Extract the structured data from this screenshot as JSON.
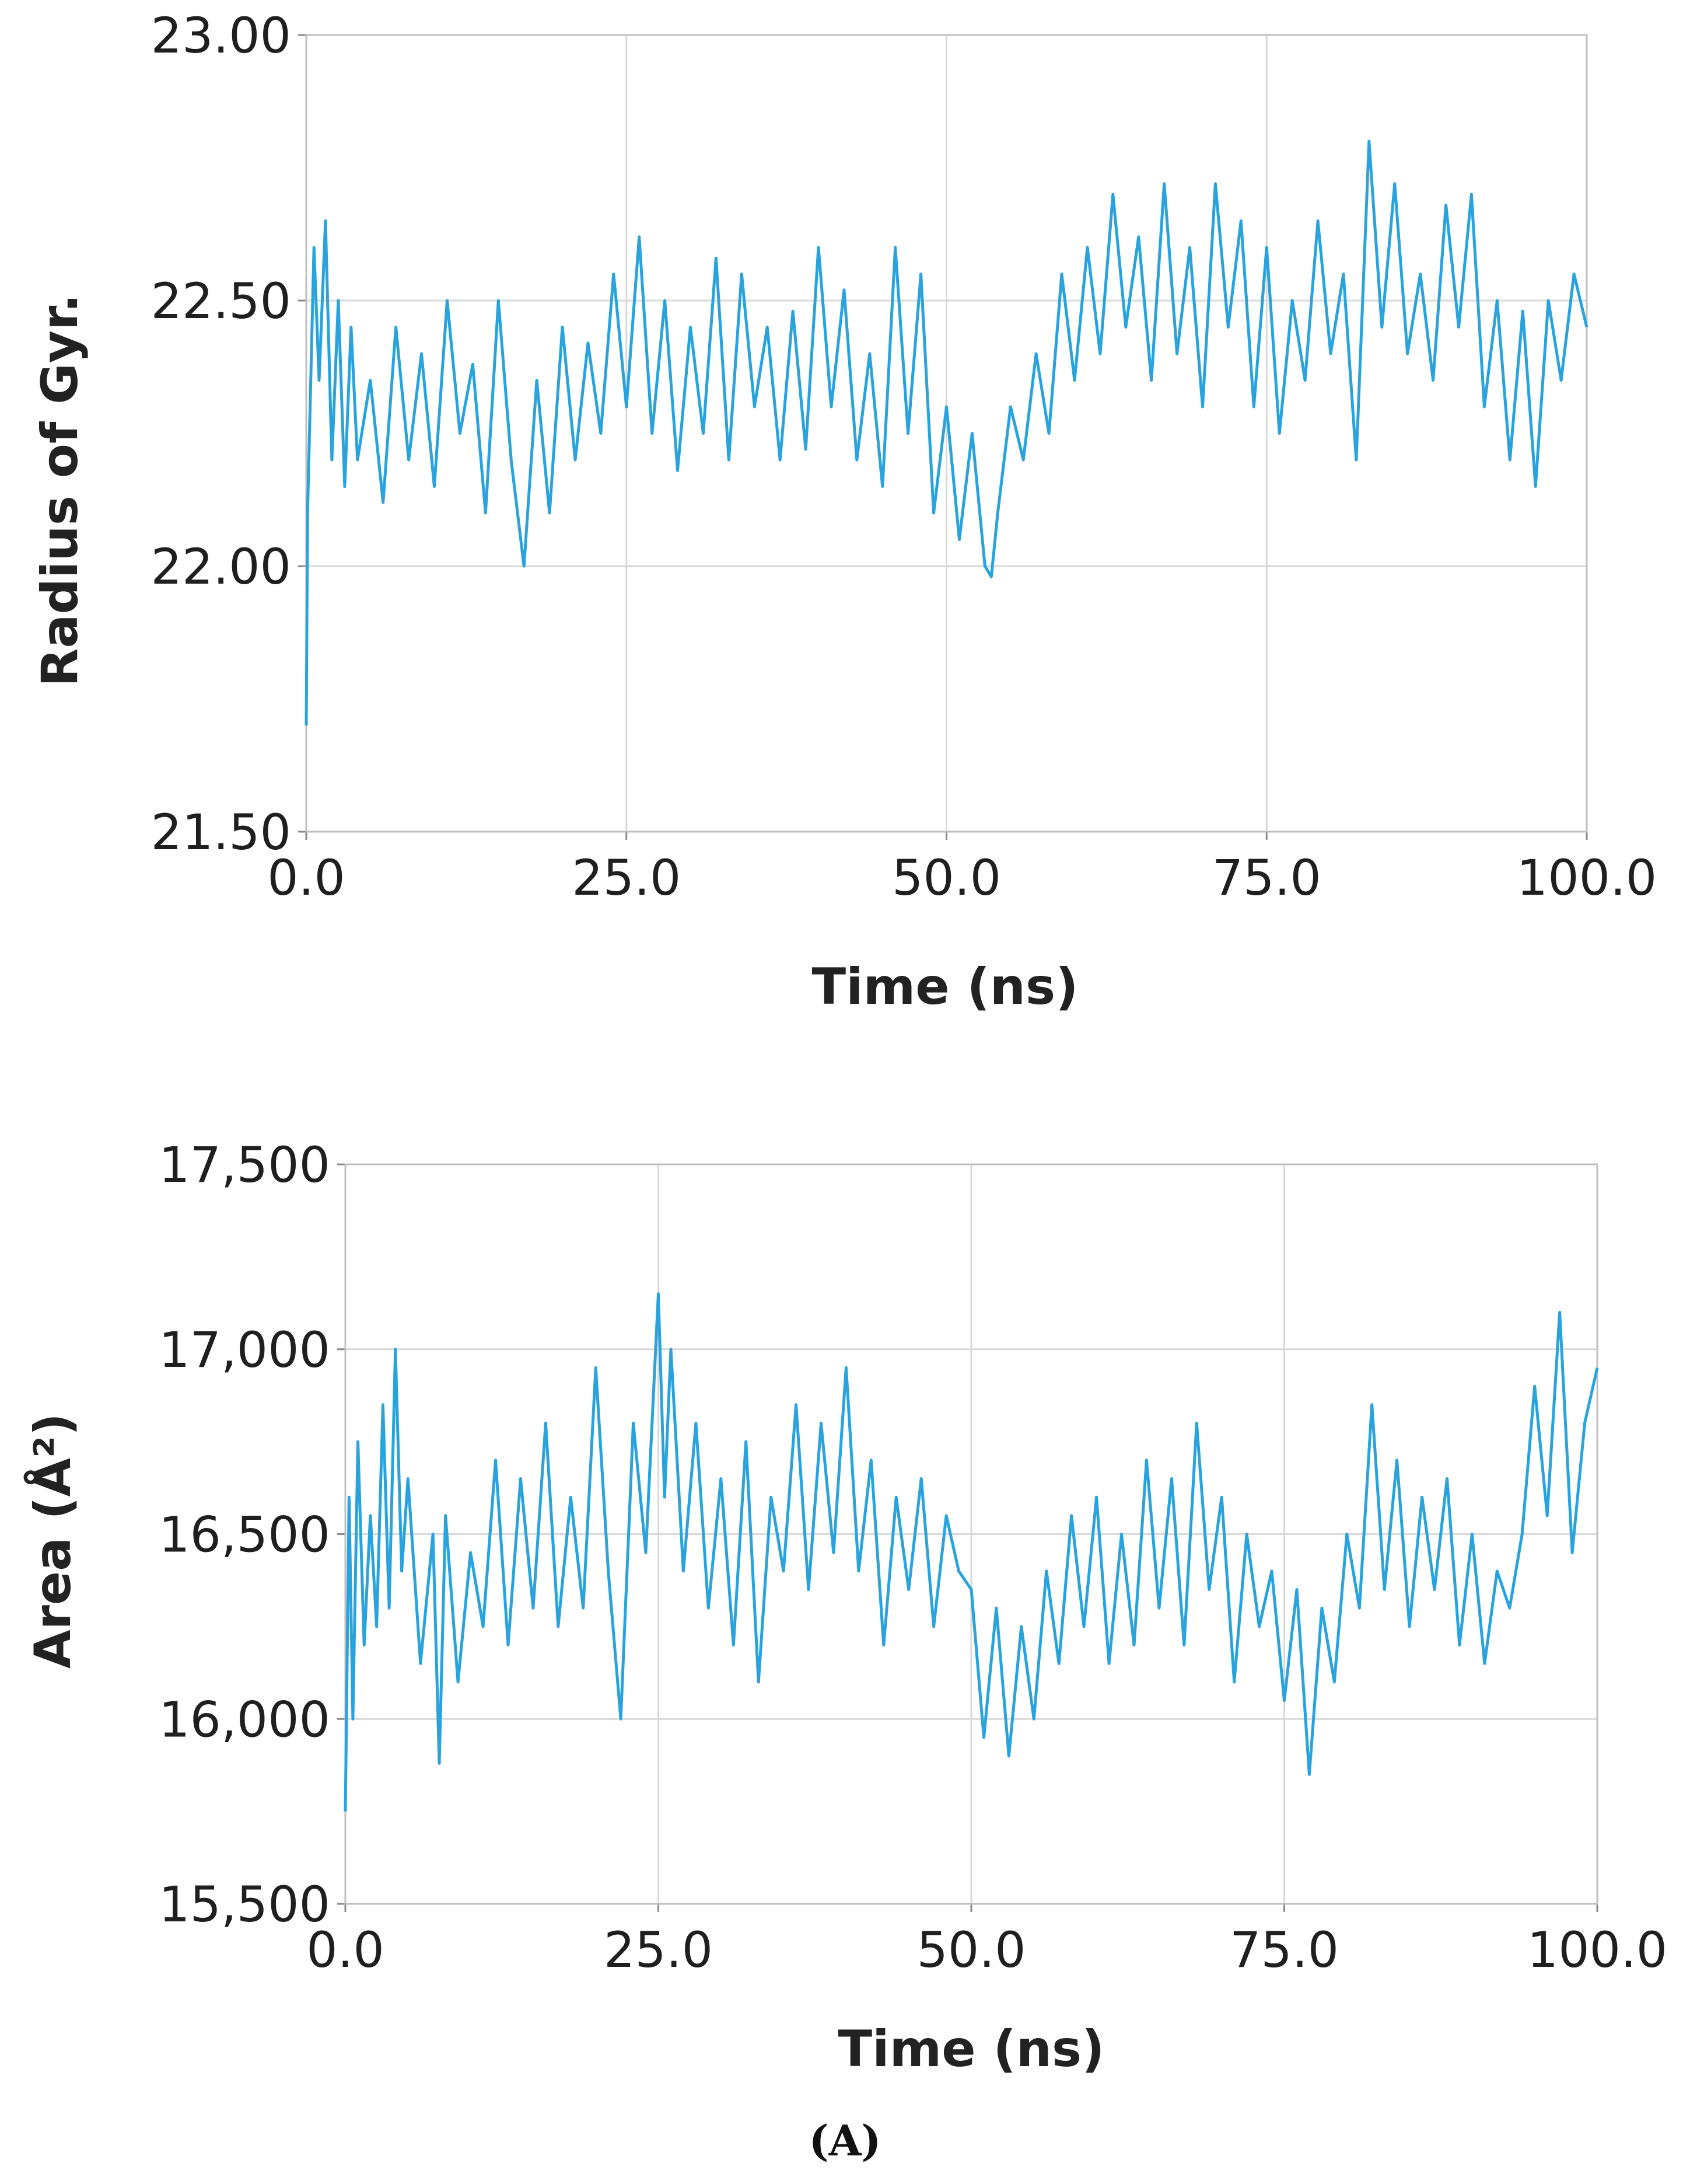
{
  "series_color": "#29a3de",
  "caption": "(A)",
  "chart_data": [
    {
      "type": "line",
      "title": "",
      "xlabel": "Time (ns)",
      "ylabel": "Radius of Gyr.",
      "xlim": [
        0,
        100
      ],
      "ylim": [
        21.5,
        23.0
      ],
      "xticks": [
        0,
        25,
        50,
        75,
        100
      ],
      "xtick_labels": [
        "0.0",
        "25.0",
        "50.0",
        "75.0",
        "100.0"
      ],
      "yticks": [
        21.5,
        22.0,
        22.5,
        23.0
      ],
      "ytick_labels": [
        "21.50",
        "22.00",
        "22.50",
        "23.00"
      ],
      "grid": true,
      "legend": "none",
      "series": [
        {
          "x": [
            0,
            0.1,
            0.3,
            0.6,
            1,
            1.5,
            2,
            2.5,
            3,
            3.5,
            4,
            5,
            6,
            7,
            8,
            9,
            10,
            11,
            12,
            13,
            14,
            15,
            16,
            17,
            18,
            19,
            20,
            21,
            22,
            23,
            24,
            25,
            26,
            27,
            28,
            29,
            30,
            31,
            32,
            33,
            34,
            35,
            36,
            37,
            38,
            39,
            40,
            41,
            42,
            43,
            44,
            45,
            46,
            47,
            48,
            49,
            50,
            51,
            52,
            53,
            53.5,
            54,
            55,
            56,
            57,
            58,
            59,
            60,
            61,
            62,
            63,
            64,
            65,
            66,
            67,
            68,
            69,
            70,
            71,
            72,
            73,
            74,
            75,
            76,
            77,
            78,
            79,
            80,
            81,
            82,
            83,
            84,
            85,
            86,
            87,
            88,
            89,
            90,
            91,
            92,
            93,
            94,
            95,
            96,
            97,
            98,
            99,
            100
          ],
          "y": [
            21.7,
            22.1,
            22.3,
            22.6,
            22.35,
            22.65,
            22.2,
            22.5,
            22.15,
            22.45,
            22.2,
            22.35,
            22.12,
            22.45,
            22.2,
            22.4,
            22.15,
            22.5,
            22.25,
            22.38,
            22.1,
            22.5,
            22.2,
            22.0,
            22.35,
            22.1,
            22.45,
            22.2,
            22.42,
            22.25,
            22.55,
            22.3,
            22.62,
            22.25,
            22.5,
            22.18,
            22.45,
            22.25,
            22.58,
            22.2,
            22.55,
            22.3,
            22.45,
            22.2,
            22.48,
            22.22,
            22.6,
            22.3,
            22.52,
            22.2,
            22.4,
            22.15,
            22.6,
            22.25,
            22.55,
            22.1,
            22.3,
            22.05,
            22.25,
            22.0,
            21.98,
            22.1,
            22.3,
            22.2,
            22.4,
            22.25,
            22.55,
            22.35,
            22.6,
            22.4,
            22.7,
            22.45,
            22.62,
            22.35,
            22.72,
            22.4,
            22.6,
            22.3,
            22.72,
            22.45,
            22.65,
            22.3,
            22.6,
            22.25,
            22.5,
            22.35,
            22.65,
            22.4,
            22.55,
            22.2,
            22.8,
            22.45,
            22.72,
            22.4,
            22.55,
            22.35,
            22.68,
            22.45,
            22.7,
            22.3,
            22.5,
            22.2,
            22.48,
            22.15,
            22.5,
            22.35,
            22.55,
            22.45
          ]
        }
      ]
    },
    {
      "type": "line",
      "title": "",
      "xlabel": "Time (ns)",
      "ylabel": "Area (Å²)",
      "xlim": [
        0,
        100
      ],
      "ylim": [
        15500,
        17500
      ],
      "xticks": [
        0,
        25,
        50,
        75,
        100
      ],
      "xtick_labels": [
        "0.0",
        "25.0",
        "50.0",
        "75.0",
        "100.0"
      ],
      "yticks": [
        15500,
        16000,
        16500,
        17000,
        17500
      ],
      "ytick_labels": [
        "15,500",
        "16,000",
        "16,500",
        "17,000",
        "17,500"
      ],
      "grid": true,
      "legend": "none",
      "series": [
        {
          "x": [
            0,
            0.3,
            0.6,
            1,
            1.5,
            2,
            2.5,
            3,
            3.5,
            4,
            4.5,
            5,
            6,
            7,
            7.5,
            8,
            9,
            10,
            11,
            12,
            13,
            14,
            15,
            16,
            17,
            18,
            19,
            20,
            21,
            22,
            23,
            24,
            25,
            25.5,
            26,
            27,
            28,
            29,
            30,
            31,
            32,
            33,
            34,
            35,
            36,
            37,
            38,
            39,
            40,
            41,
            42,
            43,
            44,
            45,
            46,
            47,
            48,
            49,
            50,
            51,
            52,
            53,
            54,
            55,
            56,
            57,
            58,
            59,
            60,
            61,
            62,
            63,
            64,
            65,
            66,
            67,
            68,
            69,
            70,
            71,
            72,
            73,
            74,
            75,
            76,
            77,
            78,
            79,
            80,
            81,
            82,
            83,
            84,
            85,
            86,
            87,
            88,
            89,
            90,
            91,
            92,
            93,
            94,
            95,
            96,
            97,
            98,
            99,
            100
          ],
          "y": [
            15750,
            16600,
            16000,
            16750,
            16200,
            16550,
            16250,
            16850,
            16300,
            17000,
            16400,
            16650,
            16150,
            16500,
            15880,
            16550,
            16100,
            16450,
            16250,
            16700,
            16200,
            16650,
            16300,
            16800,
            16250,
            16600,
            16300,
            16950,
            16400,
            16000,
            16800,
            16450,
            17150,
            16600,
            17000,
            16400,
            16800,
            16300,
            16650,
            16200,
            16750,
            16100,
            16600,
            16400,
            16850,
            16350,
            16800,
            16450,
            16950,
            16400,
            16700,
            16200,
            16600,
            16350,
            16650,
            16250,
            16550,
            16400,
            16350,
            15950,
            16300,
            15900,
            16250,
            16000,
            16400,
            16150,
            16550,
            16250,
            16600,
            16150,
            16500,
            16200,
            16700,
            16300,
            16650,
            16200,
            16800,
            16350,
            16600,
            16100,
            16500,
            16250,
            16400,
            16050,
            16350,
            15850,
            16300,
            16100,
            16500,
            16300,
            16850,
            16350,
            16700,
            16250,
            16600,
            16350,
            16650,
            16200,
            16500,
            16150,
            16400,
            16300,
            16500,
            16900,
            16550,
            17100,
            16450,
            16800,
            16950
          ]
        }
      ]
    }
  ]
}
